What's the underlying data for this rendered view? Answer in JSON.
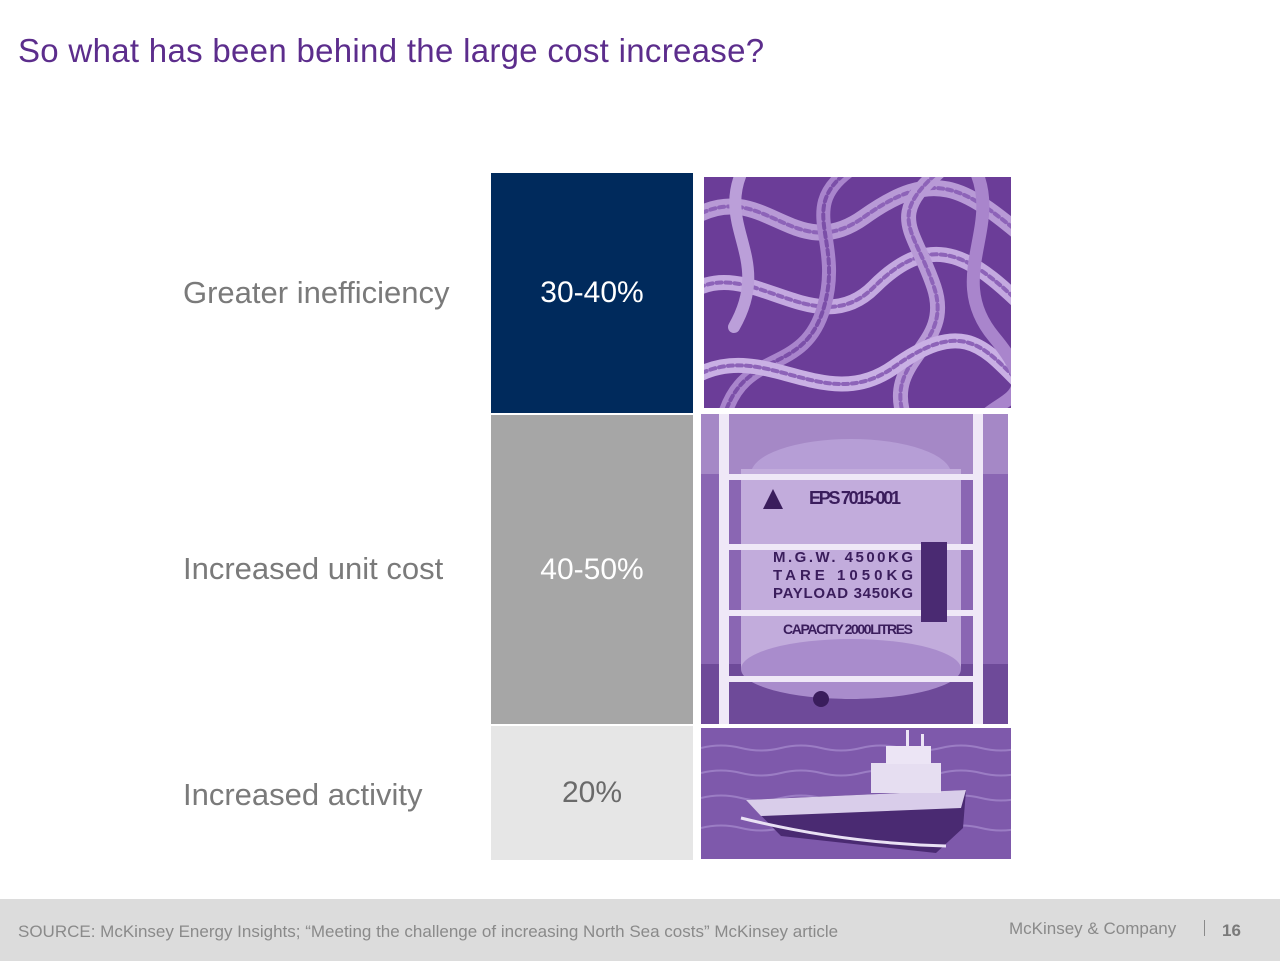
{
  "slide": {
    "title": "So what has been behind the large cost increase?"
  },
  "rows": [
    {
      "label": "Greater inefficiency",
      "value": "30-40%",
      "color": "#002a5c",
      "text_color": "#ffffff",
      "photo": "tangled-ropes-photo"
    },
    {
      "label": "Increased unit cost",
      "value": "40-50%",
      "color": "#a6a6a6",
      "text_color": "#ffffff",
      "photo": "tank-container-photo"
    },
    {
      "label": "Increased activity",
      "value": "20%",
      "color": "#e6e6e6",
      "text_color": "#6a6a6a",
      "photo": "supply-vessel-photo"
    }
  ],
  "tank_markings": {
    "id": "EPS 7015-001",
    "lines": [
      "M.G.W.   4500KG",
      "TARE     1050KG",
      "PAYLOAD 3450KG"
    ],
    "capacity": "CAPACITY 2000LITRES"
  },
  "footer": {
    "source": "SOURCE: McKinsey Energy Insights; “Meeting the challenge of increasing North Sea costs” McKinsey article",
    "company": "McKinsey & Company",
    "page": "16"
  },
  "colors": {
    "title": "#5c2d8c",
    "photo_tint": "#7a4fa8",
    "footer_bg": "#dcdcdc"
  }
}
